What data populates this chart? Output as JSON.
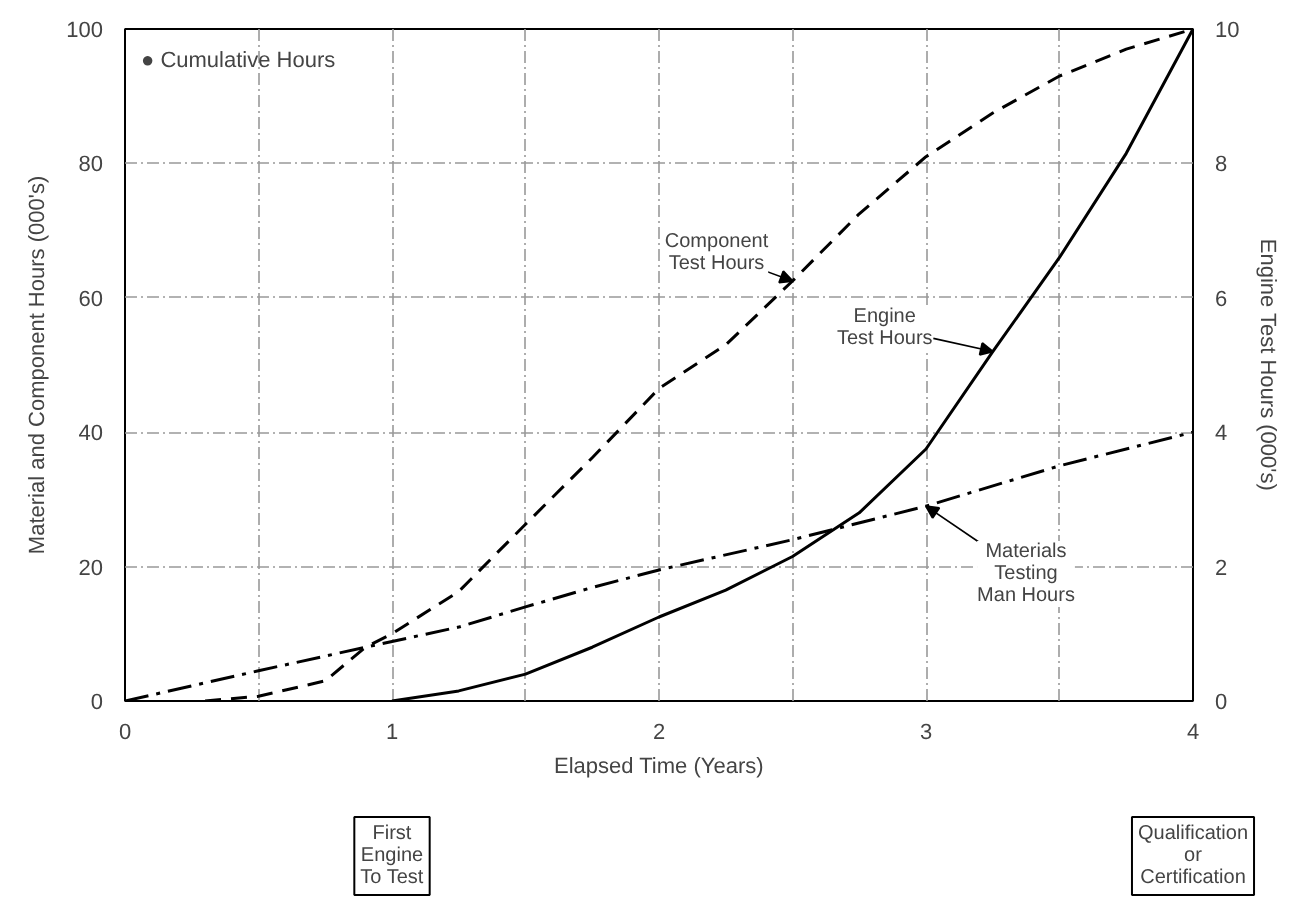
{
  "chart_data": {
    "type": "line",
    "xlabel": "Elapsed Time (Years)",
    "ylabel": "Material and Component Hours (000's)",
    "y2label": "Engine Test Hours (000's)",
    "xlim": [
      0,
      4
    ],
    "ylim": [
      0,
      100
    ],
    "y2lim": [
      0,
      10
    ],
    "xticks": [
      0,
      {
        "value": 0.5,
        "label": null
      },
      1,
      {
        "value": 1.5,
        "label": null
      },
      2,
      {
        "value": 2.5,
        "label": null
      },
      3,
      {
        "value": 3.5,
        "label": null
      },
      4
    ],
    "yticks": [
      0,
      20,
      40,
      60,
      80,
      100
    ],
    "y2ticks": [
      0,
      2,
      4,
      6,
      8,
      10
    ],
    "grid": true,
    "legend": false,
    "marker": "none",
    "series": [
      {
        "name": "Component Test Hours",
        "color": "#000000",
        "line_style": "dashed",
        "x": [
          0.3,
          0.5,
          0.75,
          0.9,
          1,
          1.25,
          1.5,
          1.75,
          2,
          2.25,
          2.5,
          2.75,
          3,
          3.25,
          3.5,
          3.75,
          4
        ],
        "values": [
          0,
          0.7,
          3,
          8,
          10,
          16.3,
          26.3,
          36.2,
          46.5,
          53,
          62.5,
          72.5,
          81,
          87.5,
          93,
          97,
          100
        ]
      },
      {
        "name": "Engine Test Hours",
        "color": "#000000",
        "line_style": "solid",
        "axis": "y2",
        "x": [
          1,
          1.25,
          1.5,
          1.75,
          2,
          2.25,
          2.5,
          2.75,
          3,
          3.25,
          3.5,
          3.75,
          4
        ],
        "values": [
          0,
          0.15,
          0.4,
          0.8,
          1.25,
          1.65,
          2.15,
          2.8,
          3.75,
          5.2,
          6.6,
          8.15,
          10
        ]
      },
      {
        "name": "Materials Testing Man Hours",
        "color": "#000000",
        "line_style": "dashdot",
        "x": [
          0,
          0.5,
          0.9,
          1.25,
          1.5,
          1.75,
          2,
          2.5,
          3,
          3.5,
          4
        ],
        "values": [
          0,
          4.5,
          8,
          11,
          14,
          16.9,
          19.5,
          24,
          29,
          35,
          40
        ]
      }
    ],
    "annotations": [
      "● Cumulative Hours",
      "First\nEngine\nTo Test",
      "Qualification\nor\nCertification"
    ]
  }
}
